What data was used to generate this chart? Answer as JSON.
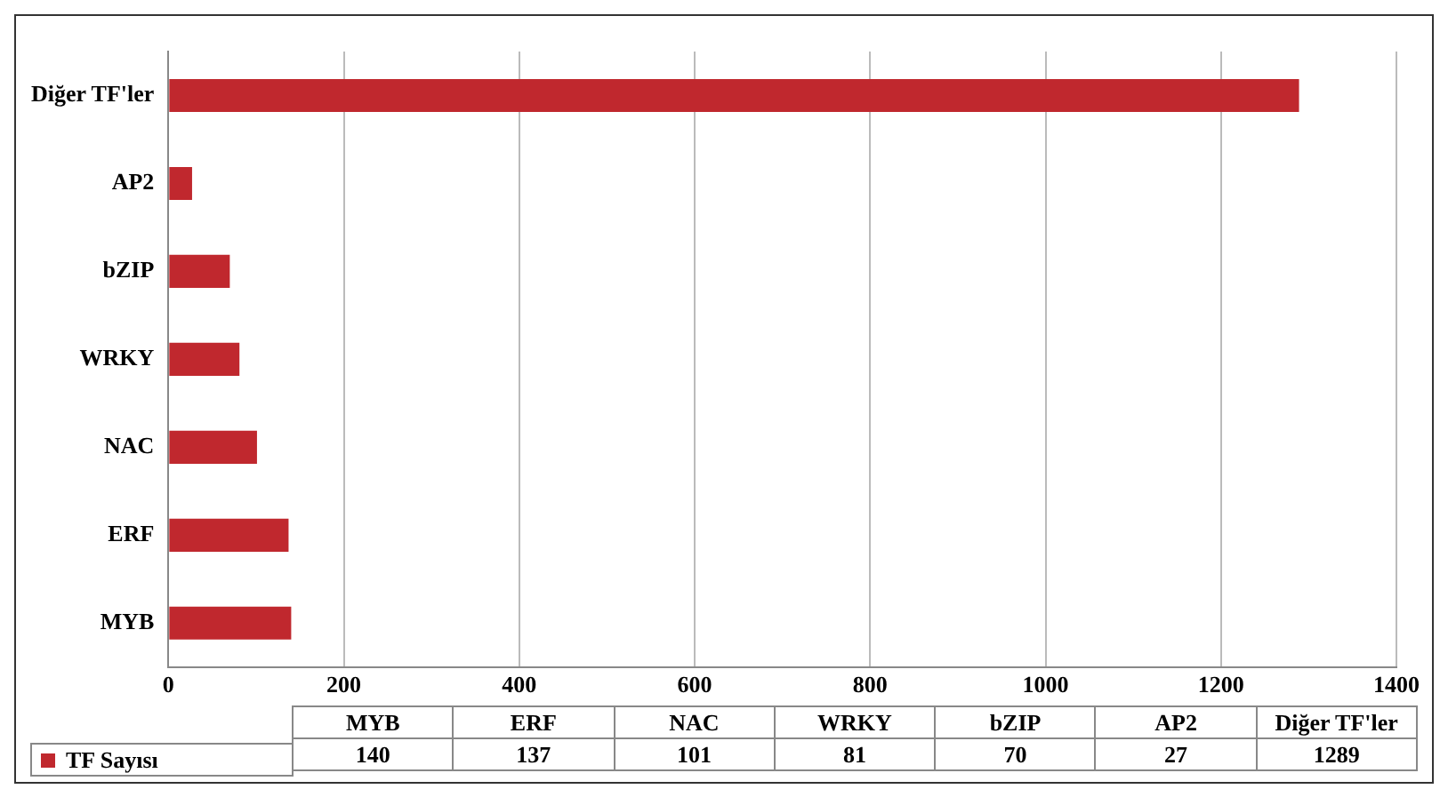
{
  "chart_data": [
    {
      "type": "bar",
      "orientation": "horizontal",
      "categories": [
        "Diğer TF'ler",
        "AP2",
        "bZIP",
        "WRKY",
        "NAC",
        "ERF",
        "MYB"
      ],
      "series": [
        {
          "name": "TF Sayısı",
          "color": "#c0282e",
          "values": [
            1289,
            27,
            70,
            81,
            101,
            137,
            140
          ]
        }
      ],
      "xlim": [
        0,
        1400
      ],
      "xticks": [
        0,
        200,
        400,
        600,
        800,
        1000,
        1200,
        1400
      ],
      "grid": "x",
      "legend": "bottom"
    },
    {
      "type": "other",
      "categories": [
        "MYB",
        "ERF",
        "NAC",
        "WRKY",
        "bZIP",
        "AP2",
        "Diğer TF'ler"
      ],
      "annotations": [
        "140",
        "137",
        "101",
        "81",
        "70",
        "27",
        "1289"
      ]
    }
  ]
}
